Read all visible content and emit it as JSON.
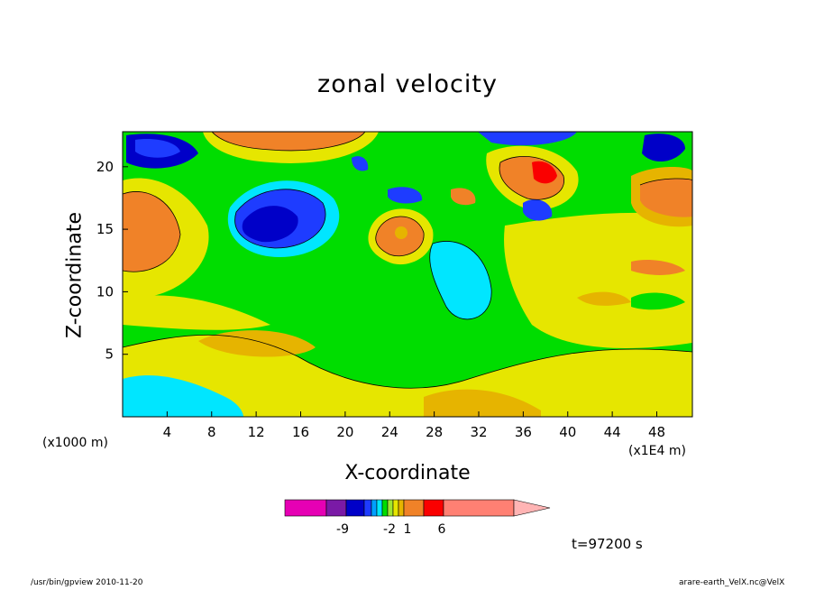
{
  "chart_data": {
    "type": "heatmap",
    "title": "zonal velocity",
    "xlabel": "X-coordinate",
    "ylabel": "Z-coordinate",
    "x_unit_label": "(x1000 m)",
    "x_exponent_label": "(x1E4 m)",
    "x_ticks": [
      "4",
      "8",
      "12",
      "16",
      "20",
      "24",
      "28",
      "32",
      "36",
      "40",
      "44",
      "48"
    ],
    "y_ticks": [
      "5",
      "10",
      "15",
      "20"
    ],
    "xlim": [
      0,
      51.2
    ],
    "ylim": [
      0,
      22.8
    ],
    "colorbar": {
      "labels": [
        "-9",
        "-2",
        "1",
        "6"
      ],
      "colors": [
        "#e600b4",
        "#7a1aa6",
        "#0000c8",
        "#1e3cff",
        "#00a0ff",
        "#00e6ff",
        "#00dd00",
        "#a0e632",
        "#e6e600",
        "#e6b400",
        "#f08228",
        "#fa0000",
        "#ff8073",
        "#ffb4b4"
      ]
    },
    "fields": [
      {
        "name": "negative_blob",
        "x": 14.5,
        "z": 16,
        "value": -8
      },
      {
        "name": "positive_blob",
        "x": 25,
        "z": 15,
        "value": 4
      },
      {
        "name": "positive_blob",
        "x": 3,
        "z": 17,
        "value": 4
      },
      {
        "name": "positive_blob",
        "x": 49,
        "z": 17.5,
        "value": 4
      }
    ],
    "time": "t=97200 s"
  },
  "footer": {
    "left": "/usr/bin/gpview   2010-11-20",
    "right": "arare-earth_VelX.nc@VelX"
  }
}
